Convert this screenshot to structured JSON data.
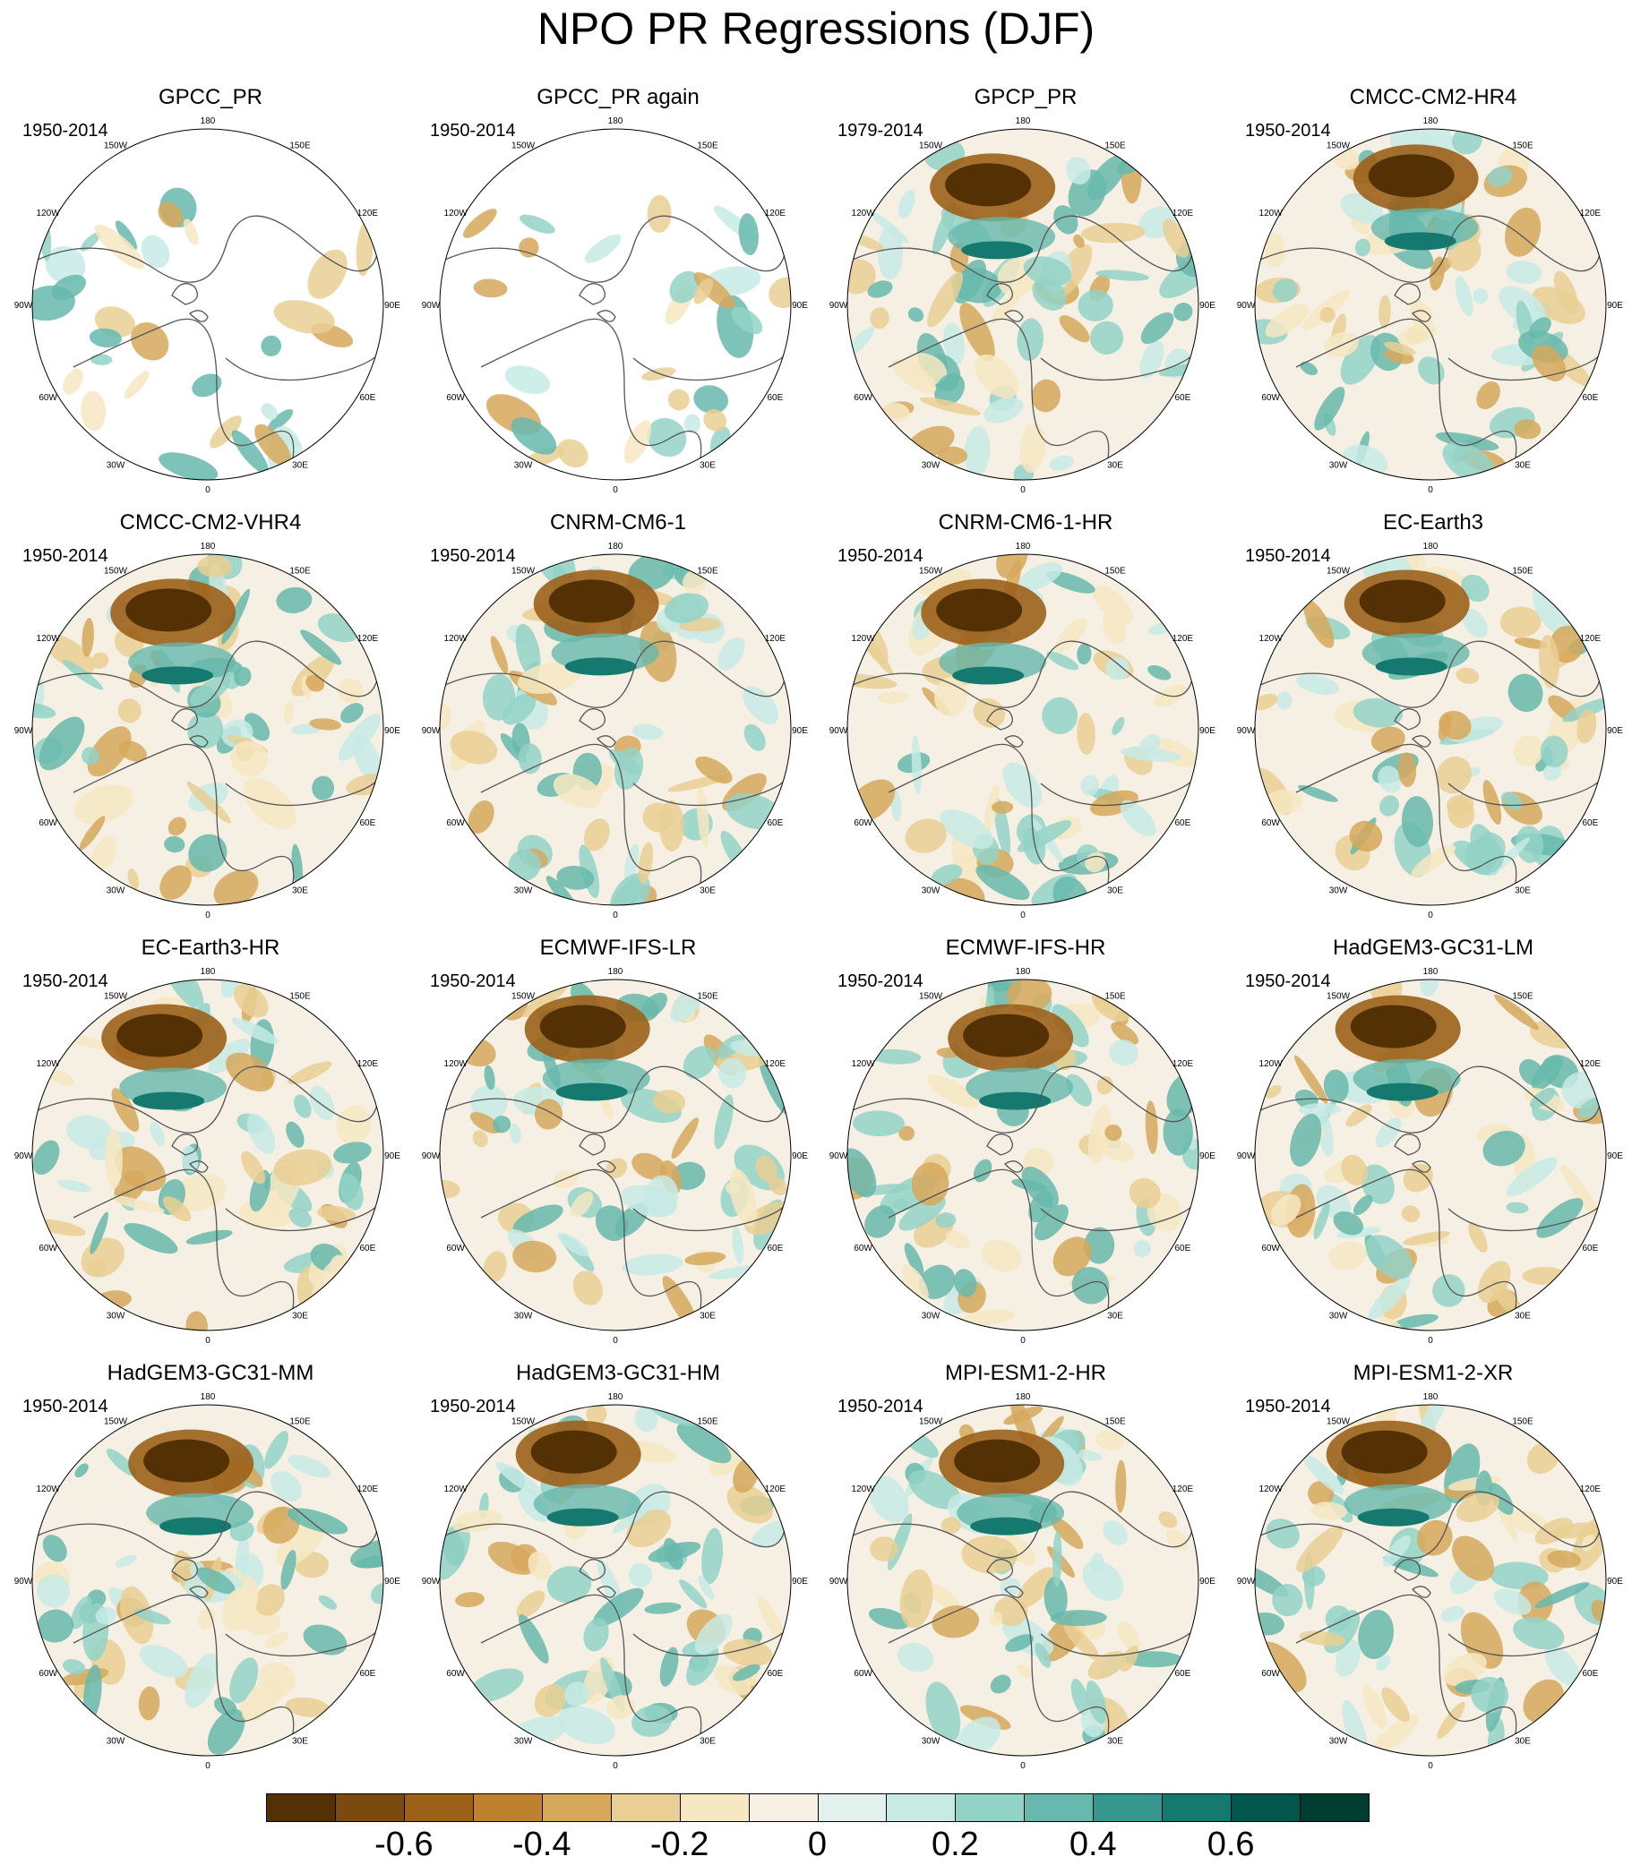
{
  "title": "NPO PR Regressions (DJF)",
  "longitude_labels": [
    "180",
    "150E",
    "120E",
    "90E",
    "60E",
    "30E",
    "0",
    "30W",
    "60W",
    "90W",
    "120W",
    "150W"
  ],
  "panels": [
    {
      "name": "GPCC_PR",
      "period": "1950-2014"
    },
    {
      "name": "GPCC_PR again",
      "period": "1950-2014"
    },
    {
      "name": "GPCP_PR",
      "period": "1979-2014"
    },
    {
      "name": "CMCC-CM2-HR4",
      "period": "1950-2014"
    },
    {
      "name": "CMCC-CM2-VHR4",
      "period": "1950-2014"
    },
    {
      "name": "CNRM-CM6-1",
      "period": "1950-2014"
    },
    {
      "name": "CNRM-CM6-1-HR",
      "period": "1950-2014"
    },
    {
      "name": "EC-Earth3",
      "period": "1950-2014"
    },
    {
      "name": "EC-Earth3-HR",
      "period": "1950-2014"
    },
    {
      "name": "ECMWF-IFS-LR",
      "period": "1950-2014"
    },
    {
      "name": "ECMWF-IFS-HR",
      "period": "1950-2014"
    },
    {
      "name": "HadGEM3-GC31-LM",
      "period": "1950-2014"
    },
    {
      "name": "HadGEM3-GC31-MM",
      "period": "1950-2014"
    },
    {
      "name": "HadGEM3-GC31-HM",
      "period": "1950-2014"
    },
    {
      "name": "MPI-ESM1-2-HR",
      "period": "1950-2014"
    },
    {
      "name": "MPI-ESM1-2-XR",
      "period": "1950-2014"
    }
  ],
  "colorbar": {
    "colors": [
      "#543005",
      "#7a4a0f",
      "#9c6019",
      "#bf812d",
      "#d6a85c",
      "#e9cf93",
      "#f6e8c3",
      "#f5f0e3",
      "#e2f1ee",
      "#c7eae5",
      "#93d2c7",
      "#67b8ad",
      "#35978f",
      "#16796f",
      "#02574d",
      "#003c30"
    ],
    "tick_labels": [
      {
        "value": -0.6,
        "text": "-0.6"
      },
      {
        "value": -0.4,
        "text": "-0.4"
      },
      {
        "value": -0.2,
        "text": "-0.2"
      },
      {
        "value": 0,
        "text": "0"
      },
      {
        "value": 0.2,
        "text": "0.2"
      },
      {
        "value": 0.4,
        "text": "0.4"
      },
      {
        "value": 0.6,
        "text": "0.6"
      }
    ],
    "range": [
      -0.8,
      0.8
    ]
  }
}
